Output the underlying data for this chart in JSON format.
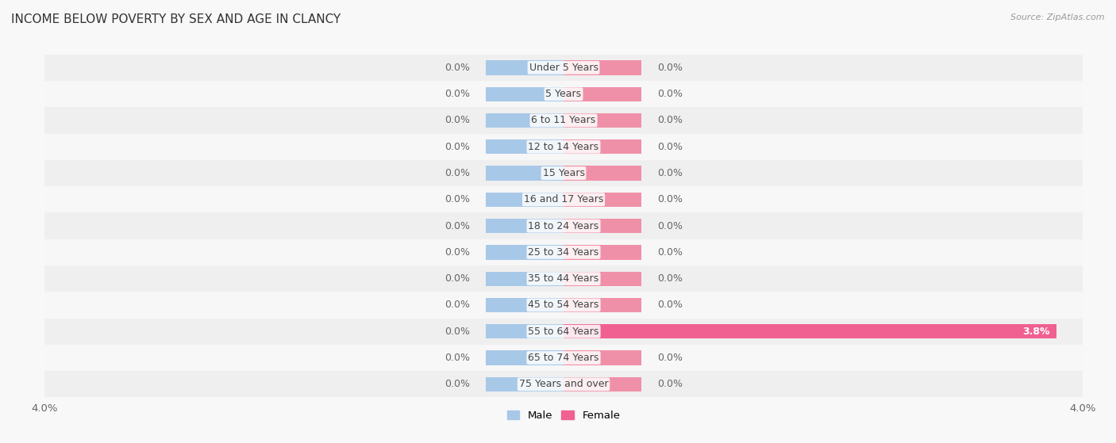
{
  "title": "INCOME BELOW POVERTY BY SEX AND AGE IN CLANCY",
  "source": "Source: ZipAtlas.com",
  "categories": [
    "Under 5 Years",
    "5 Years",
    "6 to 11 Years",
    "12 to 14 Years",
    "15 Years",
    "16 and 17 Years",
    "18 to 24 Years",
    "25 to 34 Years",
    "35 to 44 Years",
    "45 to 54 Years",
    "55 to 64 Years",
    "65 to 74 Years",
    "75 Years and over"
  ],
  "male_values": [
    0.0,
    0.0,
    0.0,
    0.0,
    0.0,
    0.0,
    0.0,
    0.0,
    0.0,
    0.0,
    0.0,
    0.0,
    0.0
  ],
  "female_values": [
    0.0,
    0.0,
    0.0,
    0.0,
    0.0,
    0.0,
    0.0,
    0.0,
    0.0,
    0.0,
    3.8,
    0.0,
    0.0
  ],
  "male_color": "#a8c8e8",
  "female_color": "#f090a8",
  "female_color_large": "#f06090",
  "row_bg_even": "#efefef",
  "row_bg_odd": "#f7f7f7",
  "fig_bg": "#f8f8f8",
  "axis_limit": 4.0,
  "min_bar_width": 0.6,
  "label_fontsize": 9,
  "title_fontsize": 11,
  "bar_height": 0.55,
  "legend_male_color": "#a8c8e8",
  "legend_female_color": "#f06090",
  "value_label_color": "#666666",
  "title_color": "#333333",
  "source_color": "#999999"
}
